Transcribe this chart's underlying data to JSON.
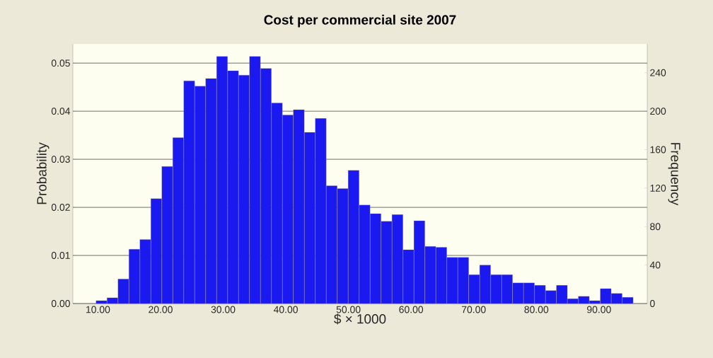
{
  "chart_data": {
    "type": "histogram",
    "title": "Cost per commercial site 2007",
    "xlabel": "$ × 1000",
    "ylabel": "Probability",
    "y2label": "Frequency",
    "bins": [
      9.7,
      11.45,
      13.2,
      14.95,
      16.7,
      18.45,
      20.2,
      21.95,
      23.7,
      25.45,
      27.2,
      28.95,
      30.7,
      32.45,
      34.2,
      35.95,
      37.7,
      39.45,
      41.2,
      42.95,
      44.7,
      46.45,
      48.2,
      49.95,
      51.7,
      53.45,
      55.2,
      56.95,
      58.7,
      60.45,
      62.2,
      63.95,
      65.7,
      67.45,
      69.2,
      70.95,
      72.7,
      74.45,
      76.2,
      77.95,
      79.7,
      81.45,
      83.2,
      84.95,
      86.7,
      88.45,
      90.2,
      91.95,
      93.7,
      95.45
    ],
    "values": [
      0.0006,
      0.0012,
      0.0051,
      0.0113,
      0.0133,
      0.0218,
      0.0285,
      0.0345,
      0.0463,
      0.0452,
      0.0468,
      0.0514,
      0.0484,
      0.0475,
      0.0514,
      0.0489,
      0.0417,
      0.0392,
      0.0403,
      0.0356,
      0.0385,
      0.0245,
      0.0239,
      0.0277,
      0.0205,
      0.0187,
      0.0171,
      0.0185,
      0.0112,
      0.0172,
      0.0119,
      0.0117,
      0.0096,
      0.0096,
      0.006,
      0.008,
      0.006,
      0.006,
      0.0043,
      0.0043,
      0.0038,
      0.0027,
      0.0038,
      0.001,
      0.0015,
      0.0006,
      0.0031,
      0.0021,
      0.0013
    ],
    "color": "#1a1af0",
    "xlim": [
      6,
      97.7
    ],
    "ylim": [
      0,
      0.054
    ],
    "y2lim": [
      0,
      270
    ],
    "xticks": [
      {
        "value": 10,
        "label": "10.00"
      },
      {
        "value": 20,
        "label": "20.00"
      },
      {
        "value": 30,
        "label": "30.00"
      },
      {
        "value": 40,
        "label": "40.00"
      },
      {
        "value": 50,
        "label": "50.00"
      },
      {
        "value": 60,
        "label": "60.00"
      },
      {
        "value": 70,
        "label": "70.00"
      },
      {
        "value": 80,
        "label": "80.00"
      },
      {
        "value": 90,
        "label": "90.00"
      }
    ],
    "yticks": [
      {
        "value": 0,
        "label": "0.00"
      },
      {
        "value": 0.01,
        "label": "0.01"
      },
      {
        "value": 0.02,
        "label": "0.02"
      },
      {
        "value": 0.03,
        "label": "0.03"
      },
      {
        "value": 0.04,
        "label": "0.04"
      },
      {
        "value": 0.05,
        "label": "0.05"
      }
    ],
    "y2ticks": [
      0,
      40,
      80,
      120,
      160,
      200,
      240
    ],
    "grid": "y"
  }
}
